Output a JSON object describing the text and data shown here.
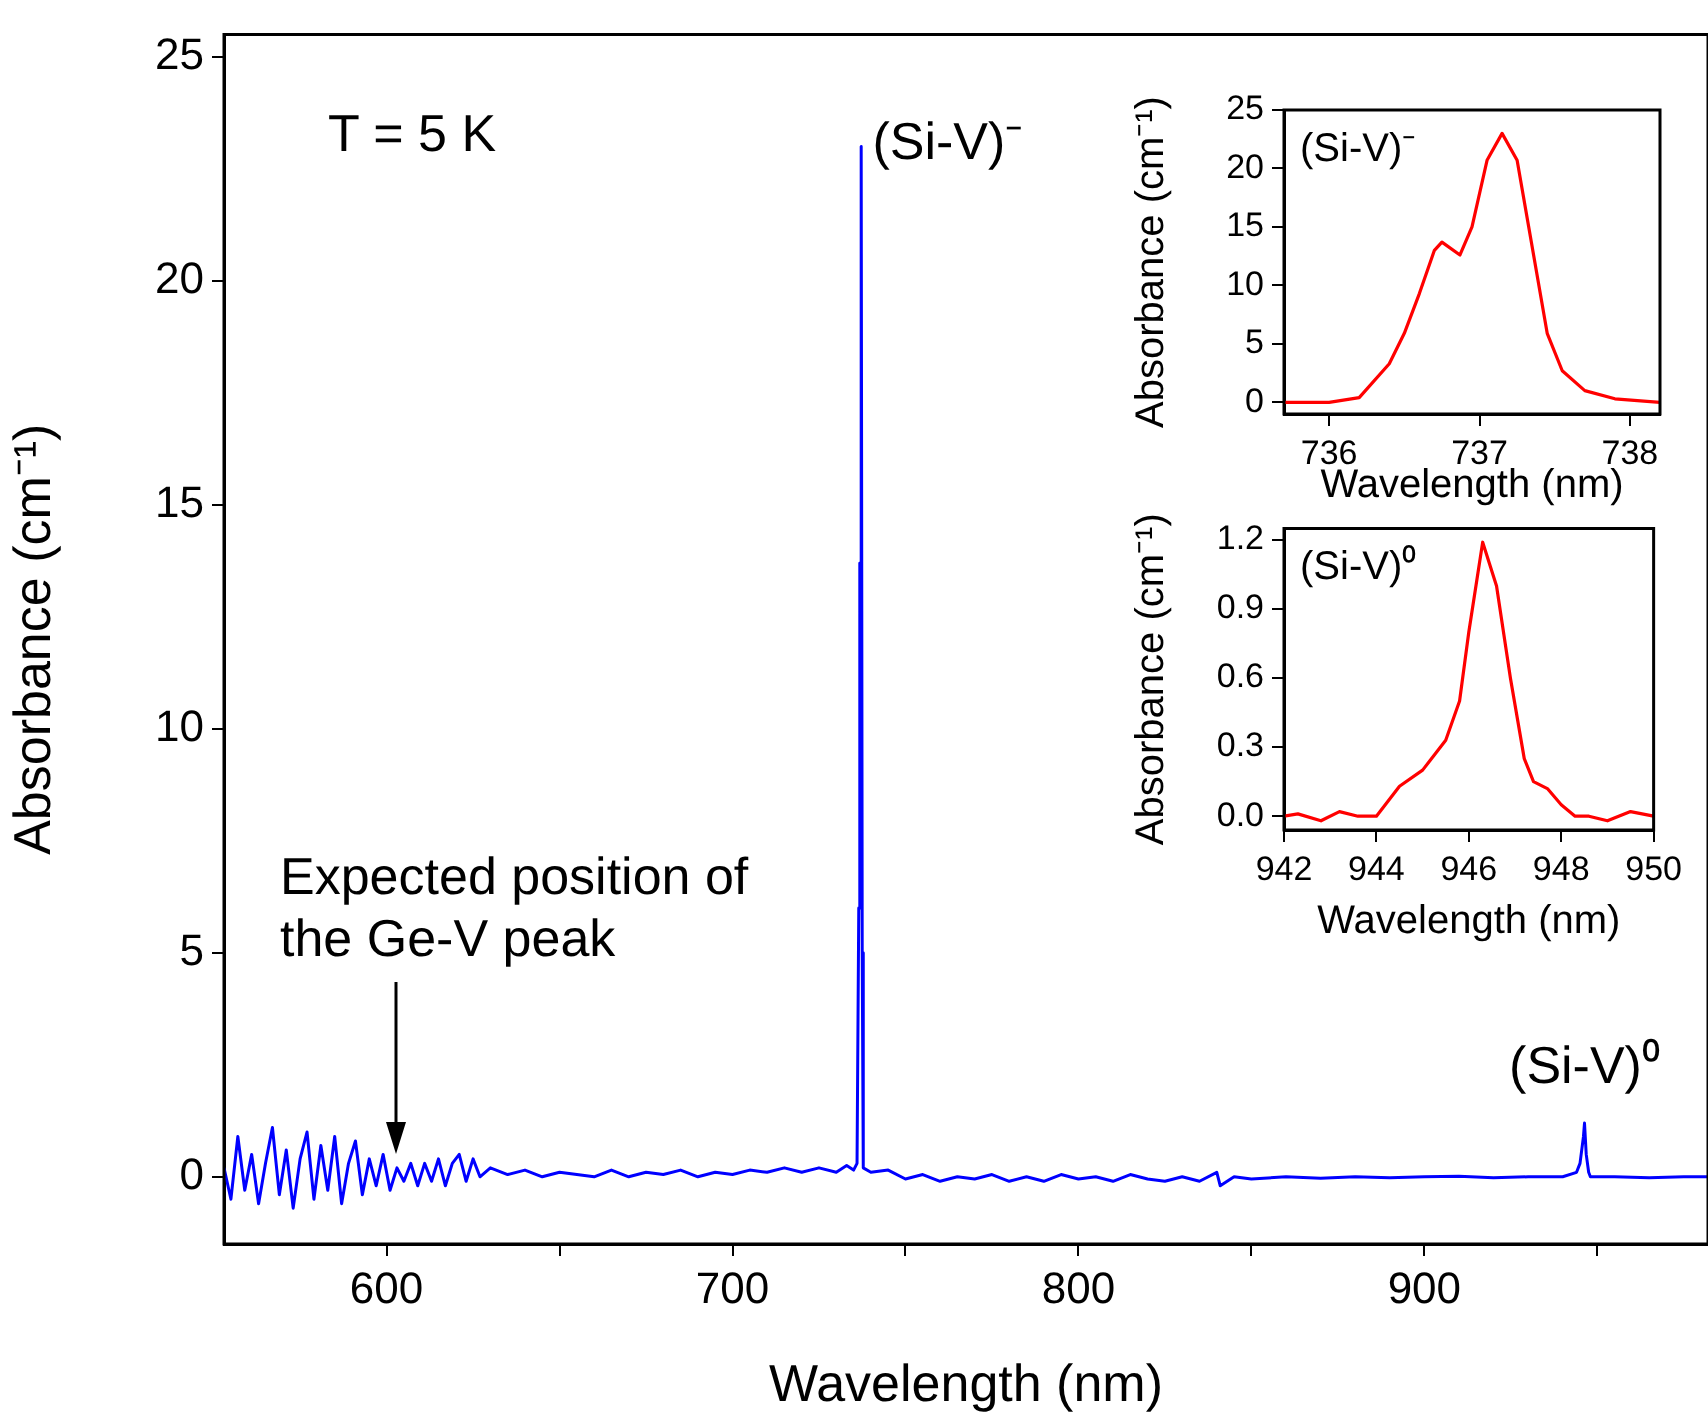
{
  "chart_data": [
    {
      "type": "line",
      "xlabel": "Wavelength (nm)",
      "ylabel": "Absorbance (cm⁻¹)",
      "xlim": [
        553,
        982
      ],
      "ylim": [
        -1.5,
        25.5
      ],
      "xticks": [
        600,
        {
          "value": 650,
          "label": null
        },
        700,
        {
          "value": 750,
          "label": null
        },
        800,
        {
          "value": 850,
          "label": null
        },
        900,
        {
          "value": 950,
          "label": null
        }
      ],
      "yticks": [
        0,
        5,
        10,
        15,
        20,
        25
      ],
      "grid": false,
      "legend": false,
      "x": [
        553,
        555,
        557,
        559,
        561,
        563,
        565,
        567,
        569,
        571,
        573,
        575,
        577,
        579,
        581,
        583,
        585,
        587,
        589,
        591,
        593,
        595,
        597,
        599,
        601,
        603,
        605,
        607,
        609,
        611,
        613,
        615,
        617,
        619,
        621,
        623,
        625,
        627,
        630,
        635,
        640,
        645,
        650,
        655,
        660,
        665,
        670,
        675,
        680,
        685,
        690,
        695,
        700,
        705,
        710,
        715,
        720,
        725,
        730,
        733,
        735,
        736,
        736.5,
        736.8,
        737,
        737.2,
        737.5,
        737.8,
        740,
        745,
        750,
        755,
        760,
        765,
        770,
        775,
        780,
        785,
        790,
        795,
        800,
        805,
        810,
        815,
        820,
        825,
        830,
        835,
        840,
        841,
        845,
        850,
        860,
        870,
        880,
        890,
        900,
        910,
        920,
        930,
        940,
        944,
        945,
        946,
        946.3,
        946.8,
        947.5,
        948,
        955,
        965,
        975,
        982
      ],
      "series": [
        {
          "color": "#0000ff",
          "values": [
            0.2,
            -0.5,
            0.9,
            -0.3,
            0.5,
            -0.6,
            0.3,
            1.1,
            -0.4,
            0.6,
            -0.7,
            0.4,
            1.0,
            -0.5,
            0.7,
            -0.3,
            0.9,
            -0.6,
            0.3,
            0.8,
            -0.4,
            0.4,
            -0.2,
            0.5,
            -0.3,
            0.2,
            -0.1,
            0.3,
            -0.2,
            0.3,
            -0.1,
            0.4,
            -0.2,
            0.3,
            0.5,
            -0.1,
            0.4,
            0.0,
            0.2,
            0.05,
            0.15,
            0.0,
            0.1,
            0.05,
            0.0,
            0.15,
            0.0,
            0.1,
            0.05,
            0.15,
            0.0,
            0.1,
            0.05,
            0.15,
            0.1,
            0.2,
            0.1,
            0.2,
            0.1,
            0.25,
            0.15,
            0.3,
            6,
            13.7,
            12.6,
            23,
            5,
            0.2,
            0.1,
            0.15,
            -0.05,
            0.05,
            -0.1,
            0.0,
            -0.05,
            0.05,
            -0.1,
            0.0,
            -0.1,
            0.05,
            -0.05,
            0.0,
            -0.1,
            0.05,
            -0.05,
            -0.1,
            0.0,
            -0.1,
            0.1,
            -0.2,
            0.0,
            -0.05,
            0.0,
            -0.03,
            0.0,
            -0.02,
            0.0,
            0.01,
            -0.02,
            0.0,
            0.0,
            0.1,
            0.3,
            0.9,
            1.2,
            0.5,
            0.1,
            0.0,
            0.0,
            -0.02,
            0.0,
            0.0
          ]
        }
      ],
      "annotations": [
        "T = 5 K",
        {
          "text": "(Si-V)⁻",
          "x": 737,
          "y": 23
        },
        {
          "text": "(Si-V)⁰",
          "x": 946.3,
          "y": 1.2
        },
        "Expected position of the Ge-V peak"
      ]
    },
    {
      "type": "line",
      "xlabel": "Wavelength (nm)",
      "ylabel": "Absorbance (cm⁻¹)",
      "xlim": [
        735.7,
        738.2
      ],
      "ylim": [
        -1,
        25
      ],
      "xticks": [
        736,
        737,
        738
      ],
      "yticks": [
        0,
        5,
        10,
        15,
        20,
        25
      ],
      "grid": false,
      "legend": false,
      "x": [
        735.7,
        736.0,
        736.2,
        736.4,
        736.5,
        736.6,
        736.7,
        736.75,
        736.87,
        736.95,
        737.05,
        737.15,
        737.25,
        737.35,
        737.45,
        737.55,
        737.7,
        737.9,
        738.2
      ],
      "series": [
        {
          "color": "#ff0000",
          "values": [
            0,
            0,
            0.4,
            3.3,
            5.9,
            9.3,
            13,
            13.7,
            12.6,
            15,
            20.7,
            23,
            20.7,
            13.3,
            5.9,
            2.7,
            1.0,
            0.3,
            0
          ]
        }
      ],
      "annotations": [
        "(Si-V)⁻"
      ]
    },
    {
      "type": "line",
      "xlabel": "Wavelength (nm)",
      "ylabel": "Absorbance (cm⁻¹)",
      "xlim": [
        942,
        950
      ],
      "ylim": [
        -0.06,
        1.25
      ],
      "xticks": [
        942,
        944,
        946,
        948,
        950
      ],
      "yticks": [
        {
          "value": 0,
          "label": "0.0"
        },
        0.3,
        0.6,
        0.9,
        1.2
      ],
      "grid": false,
      "legend": false,
      "x": [
        942,
        942.3,
        942.8,
        943.2,
        943.6,
        944,
        944.5,
        945,
        945.5,
        945.8,
        946,
        946.3,
        946.6,
        946.9,
        947.2,
        947.4,
        947.7,
        948,
        948.3,
        948.6,
        949,
        949.5,
        950
      ],
      "series": [
        {
          "color": "#ff0000",
          "values": [
            0,
            0.01,
            -0.02,
            0.02,
            0,
            0,
            0.13,
            0.2,
            0.33,
            0.5,
            0.8,
            1.19,
            1.0,
            0.6,
            0.25,
            0.15,
            0.12,
            0.05,
            0,
            0,
            -0.02,
            0.02,
            0
          ]
        }
      ],
      "annotations": [
        "(Si-V)⁰"
      ]
    }
  ]
}
